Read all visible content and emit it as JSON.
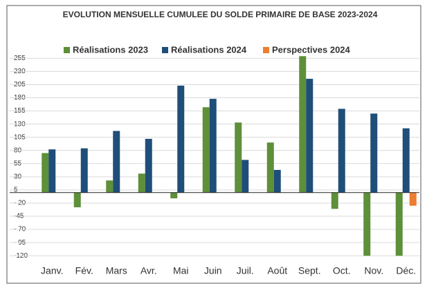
{
  "chart_data": {
    "type": "bar",
    "title": "EVOLUTION MENSUELLE CUMULEE DU SOLDE PRIMAIRE DE BASE 2023-2024",
    "categories": [
      "Janv.",
      "Fév.",
      "Mars",
      "Avr.",
      "Mai",
      "Juin",
      "Juil.",
      "Août",
      "Sept.",
      "Oct.",
      "Nov.",
      "Déc."
    ],
    "series": [
      {
        "name": "Réalisations 2023",
        "color": "#5e8f39",
        "values": [
          75,
          -28,
          23,
          36,
          -11,
          162,
          133,
          95,
          259,
          -31,
          -120,
          -120
        ]
      },
      {
        "name": "Réalisations 2024",
        "color": "#1f4e79",
        "values": [
          82,
          84,
          117,
          102,
          203,
          178,
          62,
          43,
          216,
          159,
          150,
          122
        ]
      },
      {
        "name": "Perspectives 2024",
        "color": "#ed7d31",
        "values": [
          null,
          null,
          null,
          null,
          null,
          null,
          null,
          null,
          null,
          null,
          null,
          -25
        ]
      }
    ],
    "ylim": [
      -125,
      262
    ],
    "yticks": [
      255,
      230,
      205,
      180,
      155,
      130,
      105,
      80,
      55,
      30,
      5,
      {
        "value": -20,
        "label": "- 20"
      },
      -45,
      {
        "value": -70,
        "label": "- 70"
      },
      {
        "value": -95,
        "label": "- 95"
      },
      -120
    ],
    "grid": true,
    "legend": "top"
  }
}
